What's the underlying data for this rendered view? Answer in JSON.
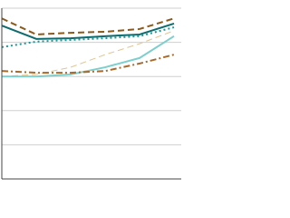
{
  "chart_data": {
    "type": "line",
    "categories": [
      null,
      null,
      null,
      null,
      null,
      null
    ],
    "ylim": [
      0,
      5
    ],
    "yticks": [
      0,
      1,
      2,
      3,
      4,
      5
    ],
    "grid": true,
    "series": [
      {
        "color": "#8b5a1a",
        "style": "dashed",
        "width": 2,
        "values": [
          4.7,
          4.23,
          4.28,
          4.31,
          4.39,
          4.7
        ]
      },
      {
        "color": "#0e6b6e",
        "style": "solid",
        "width": 2,
        "values": [
          4.49,
          4.1,
          4.12,
          4.18,
          4.23,
          4.55
        ]
      },
      {
        "color": "#1a9a9a",
        "style": "dotted",
        "width": 2,
        "values": [
          3.86,
          4.02,
          4.07,
          4.12,
          4.18,
          4.44
        ]
      },
      {
        "color": "#e3c48f",
        "style": "dashed",
        "width": 1,
        "values": [
          3.0,
          3.06,
          3.27,
          3.64,
          3.96,
          4.34
        ]
      },
      {
        "color": "#7ccfcc",
        "style": "solid",
        "width": 2,
        "values": [
          3.0,
          3.0,
          3.06,
          3.27,
          3.54,
          4.18
        ]
      },
      {
        "color": "#a8692a",
        "style": "dashdot",
        "width": 2,
        "values": [
          3.16,
          3.11,
          3.11,
          3.16,
          3.38,
          3.64
        ]
      }
    ]
  }
}
